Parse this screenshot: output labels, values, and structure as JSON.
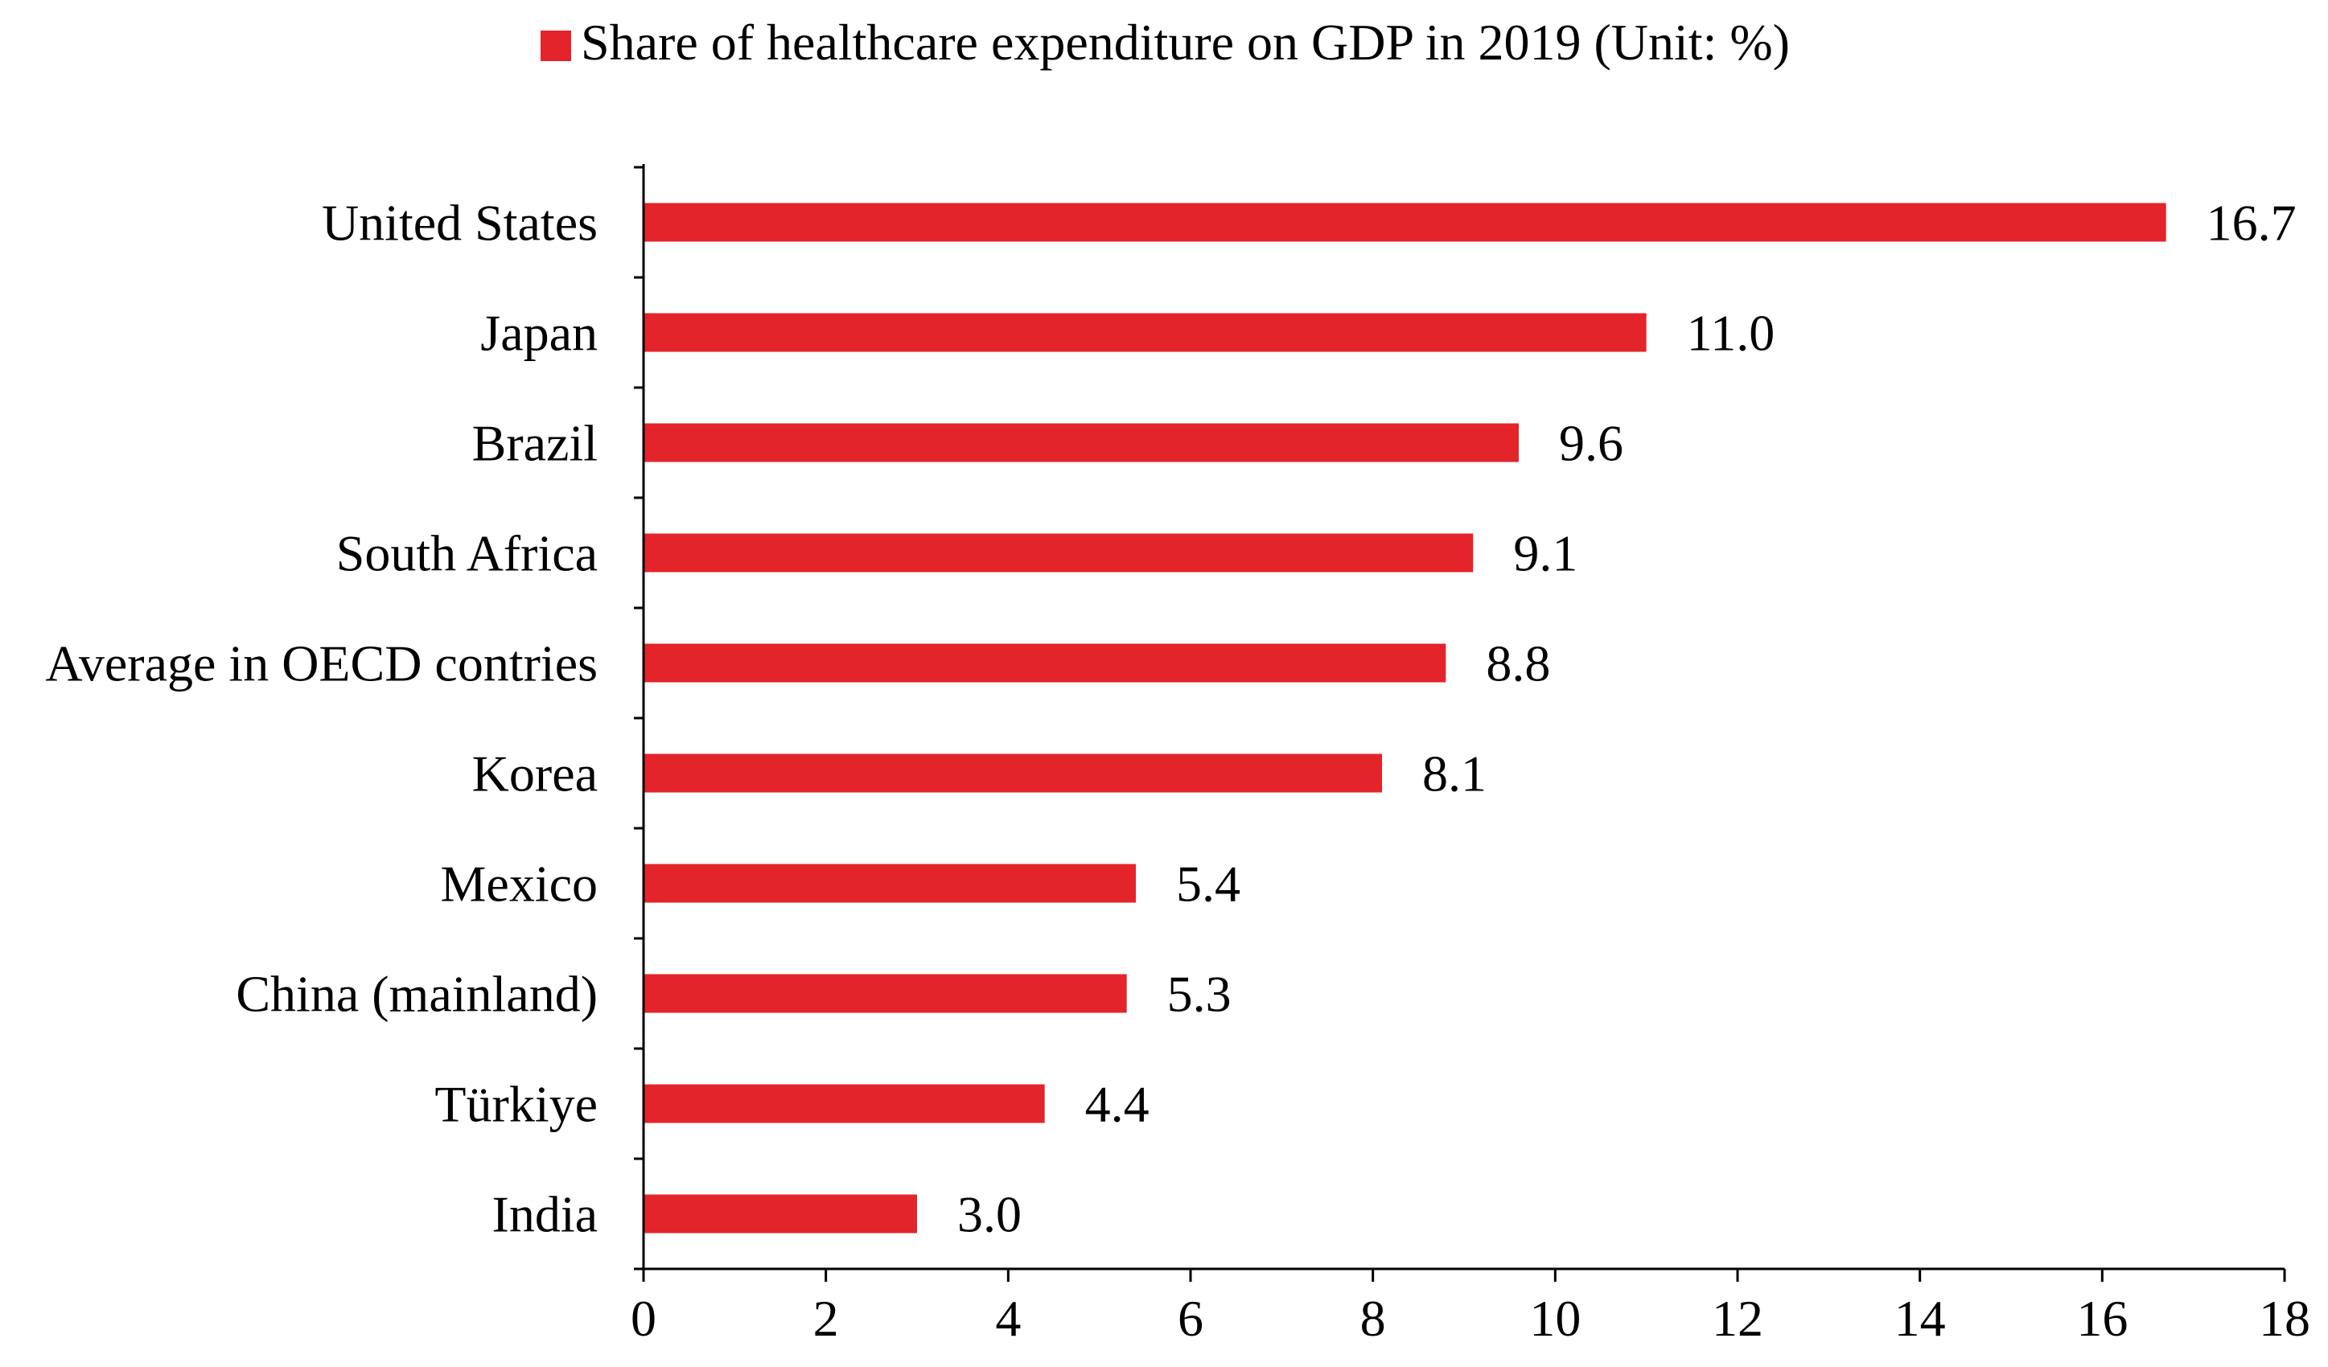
{
  "chart_data": {
    "type": "bar",
    "orientation": "horizontal",
    "series": [
      {
        "name": "Share of healthcare expenditure on GDP in 2019 (Unit: %)",
        "color": "#E3242B",
        "values": [
          16.7,
          11.0,
          9.6,
          9.1,
          8.8,
          8.1,
          5.4,
          5.3,
          4.4,
          3.0
        ]
      }
    ],
    "categories": [
      "United States",
      "Japan",
      "Brazil",
      "South Africa",
      "Average in OECD contries",
      "Korea",
      "Mexico",
      "China (mainland)",
      "Türkiye",
      "India"
    ],
    "value_labels": [
      "16.7",
      "11.0",
      "9.6",
      "9.1",
      "8.8",
      "8.1",
      "5.4",
      "5.3",
      "4.4",
      "3.0"
    ],
    "xlim": [
      0,
      18
    ],
    "xticks": [
      0,
      2,
      4,
      6,
      8,
      10,
      12,
      14,
      16,
      18
    ],
    "xlabel": "",
    "ylabel": "",
    "title": "",
    "legend": {
      "position": "top-center",
      "text": "Share of healthcare expenditure on GDP in 2019 (Unit: %)"
    },
    "grid": false
  }
}
